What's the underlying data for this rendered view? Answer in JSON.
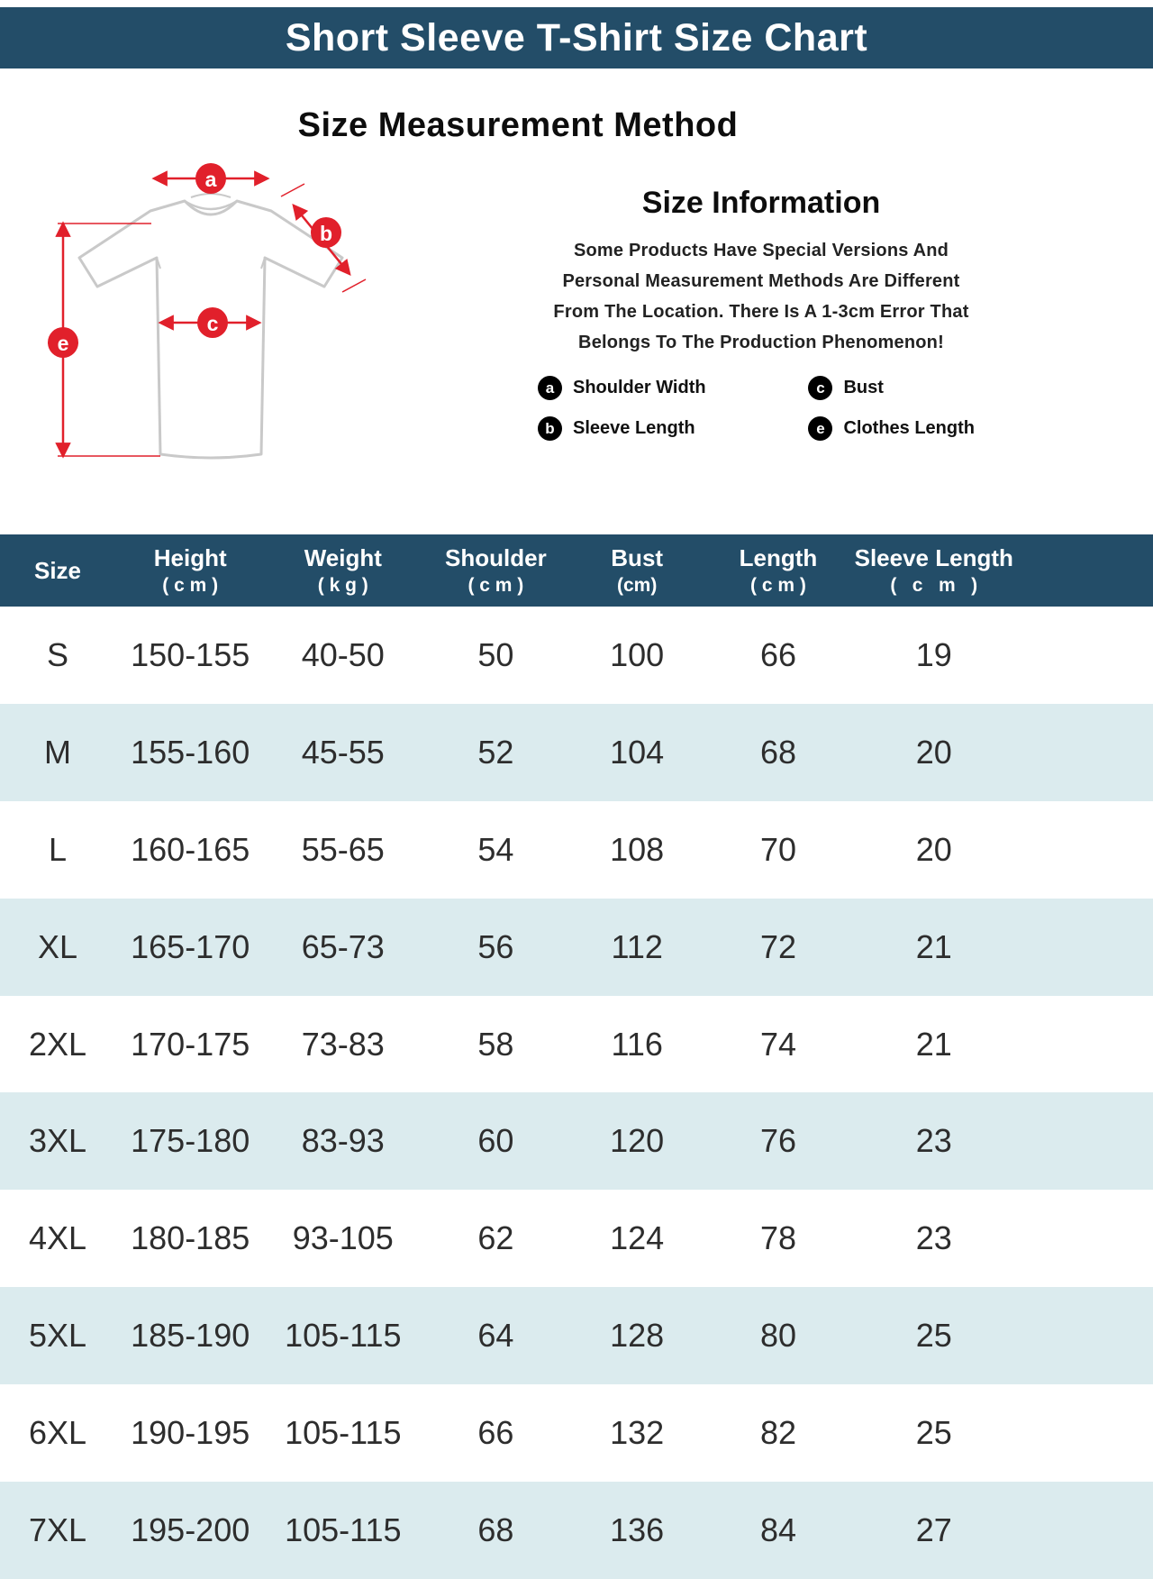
{
  "colors": {
    "navy": "#234d68",
    "stripe": "#dbebee",
    "red": "#e1202b",
    "legend_icon": "#000000"
  },
  "title_bar": {
    "title": "Short Sleeve T-Shirt Size Chart"
  },
  "measurement": {
    "title": "Size Measurement Method",
    "diagram_labels": {
      "a": "a",
      "b": "b",
      "c": "c",
      "e": "e"
    }
  },
  "info": {
    "title": "Size Information",
    "lines": [
      "Some Products Have Special Versions And",
      "Personal Measurement Methods Are Different",
      "From The Location. There Is A 1-3cm Error That",
      "Belongs To The Production Phenomenon!"
    ],
    "legend": [
      {
        "key": "a",
        "label": "Shoulder Width"
      },
      {
        "key": "c",
        "label": "Bust"
      },
      {
        "key": "b",
        "label": "Sleeve Length"
      },
      {
        "key": "e",
        "label": "Clothes Length"
      }
    ]
  },
  "table": {
    "headers": [
      {
        "line1": "Size",
        "line2": ""
      },
      {
        "line1": "Height",
        "line2": "( c m )"
      },
      {
        "line1": "Weight",
        "line2": "( k g )"
      },
      {
        "line1": "Shoulder",
        "line2": "( c m )"
      },
      {
        "line1": "Bust",
        "line2": "(cm)"
      },
      {
        "line1": "Length",
        "line2": "( c m )"
      },
      {
        "line1": "Sleeve Length",
        "line2": "(   c   m   )"
      }
    ]
  },
  "chart_data": {
    "type": "table",
    "title": "Short Sleeve T-Shirt Size Chart",
    "columns": [
      "Size",
      "Height (cm)",
      "Weight (kg)",
      "Shoulder (cm)",
      "Bust (cm)",
      "Length (cm)",
      "Sleeve Length (cm)"
    ],
    "rows": [
      [
        "S",
        "150-155",
        "40-50",
        50,
        100,
        66,
        19
      ],
      [
        "M",
        "155-160",
        "45-55",
        52,
        104,
        68,
        20
      ],
      [
        "L",
        "160-165",
        "55-65",
        54,
        108,
        70,
        20
      ],
      [
        "XL",
        "165-170",
        "65-73",
        56,
        112,
        72,
        21
      ],
      [
        "2XL",
        "170-175",
        "73-83",
        58,
        116,
        74,
        21
      ],
      [
        "3XL",
        "175-180",
        "83-93",
        60,
        120,
        76,
        23
      ],
      [
        "4XL",
        "180-185",
        "93-105",
        62,
        124,
        78,
        23
      ],
      [
        "5XL",
        "185-190",
        "105-115",
        64,
        128,
        80,
        25
      ],
      [
        "6XL",
        "190-195",
        "105-115",
        66,
        132,
        82,
        25
      ],
      [
        "7XL",
        "195-200",
        "105-115",
        68,
        136,
        84,
        27
      ]
    ]
  }
}
